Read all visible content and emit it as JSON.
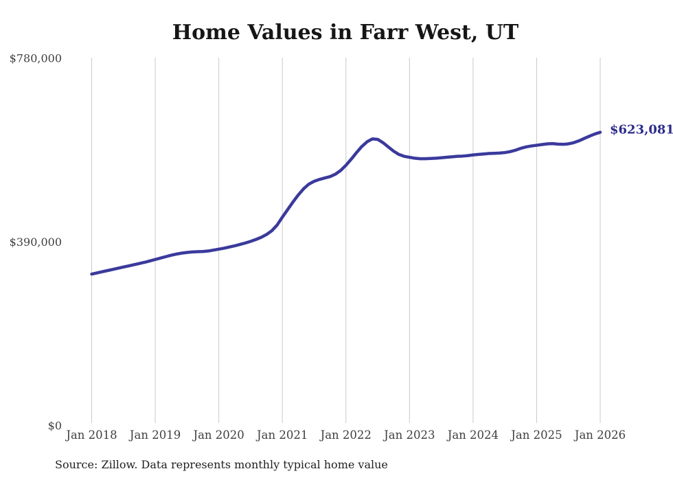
{
  "title": "Home Values in Farr West, UT",
  "source_note": "Source: Zillow. Data represents monthly typical home value",
  "end_label": "$623,081",
  "colors": {
    "background": "#ffffff",
    "line": "#3a3a9c",
    "end_label": "#2c2c8c",
    "grid": "#c9c9c9",
    "title_text": "#161616",
    "axis_text": "#3f3f3f",
    "source_text": "#1f1f1f"
  },
  "chart_data": {
    "type": "line",
    "title": "Home Values in Farr West, UT",
    "xlabel": "",
    "ylabel": "",
    "x_unit": "month",
    "x_start": "Jan 2018",
    "x_end": "Jan 2026",
    "x_tick_labels": [
      "Jan 2018",
      "Jan 2019",
      "Jan 2020",
      "Jan 2021",
      "Jan 2022",
      "Jan 2023",
      "Jan 2024",
      "Jan 2025",
      "Jan 2026"
    ],
    "y_ticks": [
      0,
      390000,
      780000
    ],
    "y_tick_labels": [
      "$0",
      "$390,000",
      "$780,000"
    ],
    "ylim": [
      0,
      780000
    ],
    "grid": "vertical-yearly",
    "legend": "none",
    "end_value": 623081,
    "series": [
      {
        "name": "Monthly typical home value",
        "values": [
          322000,
          324500,
          327000,
          329500,
          332000,
          334500,
          337000,
          339500,
          342000,
          344500,
          347000,
          350000,
          353000,
          356000,
          359000,
          362000,
          364500,
          366500,
          368000,
          369000,
          369500,
          370000,
          371000,
          373000,
          375000,
          377000,
          379500,
          382000,
          385000,
          388000,
          391500,
          395500,
          400000,
          406000,
          414000,
          426000,
          443000,
          459000,
          475000,
          490000,
          503000,
          513000,
          519000,
          523000,
          526000,
          529000,
          534000,
          542000,
          553000,
          566000,
          580000,
          593000,
          603000,
          609000,
          608000,
          601000,
          592000,
          583000,
          576000,
          572000,
          570000,
          568000,
          567000,
          567000,
          567500,
          568000,
          569000,
          570000,
          571000,
          572000,
          572500,
          573500,
          575000,
          576000,
          577000,
          578000,
          578500,
          579000,
          580000,
          582000,
          585000,
          589000,
          592000,
          594000,
          595500,
          597000,
          598500,
          599000,
          598000,
          597500,
          598500,
          601000,
          605000,
          610000,
          615000,
          619500,
          623081
        ]
      }
    ]
  }
}
